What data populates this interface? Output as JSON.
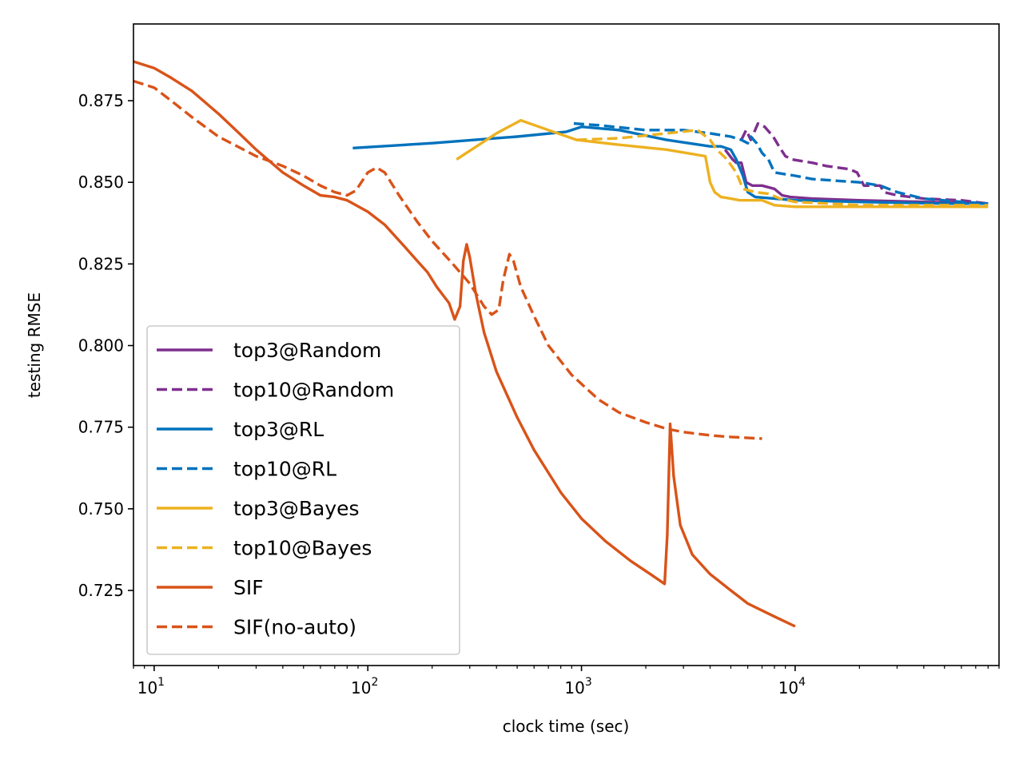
{
  "chart_data": {
    "type": "line",
    "title": "",
    "xlabel": "clock time (sec)",
    "ylabel": "testing RMSE",
    "xscale": "log",
    "xlim": [
      8,
      90000
    ],
    "ylim": [
      0.702,
      0.8985
    ],
    "x_ticks": [
      {
        "value": 10,
        "base": "10",
        "exp": "1"
      },
      {
        "value": 100,
        "base": "10",
        "exp": "2"
      },
      {
        "value": 1000,
        "base": "10",
        "exp": "3"
      },
      {
        "value": 10000,
        "base": "10",
        "exp": "4"
      }
    ],
    "y_ticks": [
      {
        "value": 0.725,
        "label": "0.725"
      },
      {
        "value": 0.75,
        "label": "0.750"
      },
      {
        "value": 0.775,
        "label": "0.775"
      },
      {
        "value": 0.8,
        "label": "0.800"
      },
      {
        "value": 0.825,
        "label": "0.825"
      },
      {
        "value": 0.85,
        "label": "0.850"
      },
      {
        "value": 0.875,
        "label": "0.875"
      }
    ],
    "grid": false,
    "legend_position": "lower-left",
    "series": [
      {
        "name": "top3@Random",
        "color": "#7E2F8E",
        "dash": "solid",
        "x": [
          4700,
          5100,
          5300,
          5600,
          5900,
          6300,
          7000,
          8000,
          8700,
          9500,
          12000,
          20000,
          40000,
          80000
        ],
        "y": [
          0.86,
          0.857,
          0.856,
          0.856,
          0.85,
          0.849,
          0.849,
          0.848,
          0.846,
          0.8455,
          0.845,
          0.8445,
          0.844,
          0.8435
        ]
      },
      {
        "name": "top10@Random",
        "color": "#7E2F8E",
        "dash": "dash",
        "x": [
          5600,
          5900,
          6200,
          6700,
          7200,
          7900,
          8400,
          9000,
          9700,
          12000,
          14000,
          18000,
          19500,
          21000,
          25000,
          26000,
          30000,
          40000,
          60000,
          80000
        ],
        "y": [
          0.863,
          0.866,
          0.863,
          0.868,
          0.867,
          0.864,
          0.861,
          0.858,
          0.857,
          0.856,
          0.855,
          0.854,
          0.853,
          0.849,
          0.849,
          0.847,
          0.846,
          0.845,
          0.8445,
          0.8435
        ]
      },
      {
        "name": "top3@RL",
        "color": "#0072BD",
        "dash": "solid",
        "x": [
          85,
          200,
          500,
          850,
          900,
          1000,
          1500,
          2500,
          4000,
          4500,
          5000,
          5300,
          5700,
          6000,
          6500,
          8000,
          10000,
          20000,
          50000,
          80000
        ],
        "y": [
          0.8605,
          0.862,
          0.864,
          0.8655,
          0.866,
          0.867,
          0.866,
          0.863,
          0.861,
          0.861,
          0.86,
          0.857,
          0.852,
          0.847,
          0.8455,
          0.845,
          0.8445,
          0.844,
          0.8435,
          0.8435
        ]
      },
      {
        "name": "top10@RL",
        "color": "#0072BD",
        "dash": "dash",
        "x": [
          920,
          1200,
          2000,
          3000,
          4000,
          5000,
          5600,
          6000,
          6200,
          6600,
          7000,
          7500,
          8000,
          10000,
          12000,
          20000,
          25000,
          30000,
          40000,
          60000,
          80000
        ],
        "y": [
          0.868,
          0.8675,
          0.866,
          0.866,
          0.865,
          0.864,
          0.863,
          0.862,
          0.864,
          0.862,
          0.859,
          0.857,
          0.853,
          0.852,
          0.851,
          0.85,
          0.849,
          0.847,
          0.845,
          0.844,
          0.8435
        ]
      },
      {
        "name": "top3@Bayes",
        "color": "#EDB120",
        "dash": "solid",
        "x": [
          260,
          400,
          520,
          700,
          950,
          1500,
          2500,
          3800,
          4000,
          4200,
          4500,
          5000,
          5500,
          7000,
          8000,
          10000,
          20000,
          50000,
          80000
        ],
        "y": [
          0.857,
          0.865,
          0.869,
          0.866,
          0.863,
          0.8615,
          0.86,
          0.858,
          0.85,
          0.847,
          0.8455,
          0.845,
          0.8445,
          0.8445,
          0.843,
          0.8425,
          0.8425,
          0.8425,
          0.8425
        ]
      },
      {
        "name": "top10@Bayes",
        "color": "#EDB120",
        "dash": "dash",
        "x": [
          950,
          1500,
          2500,
          3500,
          4000,
          4300,
          4800,
          5300,
          5700,
          6500,
          7500,
          8500,
          10000,
          20000,
          50000,
          80000
        ],
        "y": [
          0.863,
          0.8635,
          0.865,
          0.866,
          0.863,
          0.86,
          0.857,
          0.853,
          0.848,
          0.847,
          0.8465,
          0.845,
          0.844,
          0.843,
          0.843,
          0.843
        ]
      },
      {
        "name": "SIF",
        "color": "#D95319",
        "dash": "solid",
        "x": [
          8,
          10,
          12,
          15,
          20,
          25,
          30,
          40,
          50,
          60,
          70,
          80,
          100,
          120,
          150,
          170,
          190,
          210,
          240,
          255,
          270,
          280,
          290,
          300,
          320,
          350,
          400,
          500,
          600,
          800,
          1000,
          1300,
          1700,
          2100,
          2450,
          2520,
          2600,
          2700,
          2900,
          3300,
          4000,
          5000,
          6000,
          8000,
          10000
        ],
        "y": [
          0.887,
          0.885,
          0.882,
          0.878,
          0.871,
          0.865,
          0.86,
          0.853,
          0.849,
          0.846,
          0.8455,
          0.8445,
          0.841,
          0.837,
          0.83,
          0.826,
          0.8225,
          0.818,
          0.813,
          0.808,
          0.812,
          0.826,
          0.831,
          0.827,
          0.816,
          0.804,
          0.792,
          0.778,
          0.768,
          0.755,
          0.747,
          0.74,
          0.734,
          0.73,
          0.727,
          0.742,
          0.776,
          0.76,
          0.745,
          0.736,
          0.73,
          0.725,
          0.721,
          0.717,
          0.714
        ]
      },
      {
        "name": "SIF(no-auto)",
        "color": "#D95319",
        "dash": "dash",
        "x": [
          8,
          10,
          12,
          15,
          20,
          30,
          40,
          50,
          60,
          70,
          80,
          88,
          100,
          110,
          120,
          140,
          170,
          200,
          250,
          300,
          350,
          380,
          410,
          430,
          460,
          480,
          520,
          600,
          700,
          900,
          1200,
          1500,
          2000,
          2500,
          3000,
          4000,
          5000,
          7000
        ],
        "y": [
          0.881,
          0.879,
          0.875,
          0.87,
          0.864,
          0.858,
          0.855,
          0.852,
          0.849,
          0.847,
          0.846,
          0.8475,
          0.853,
          0.8545,
          0.853,
          0.846,
          0.838,
          0.832,
          0.825,
          0.819,
          0.812,
          0.8095,
          0.811,
          0.82,
          0.828,
          0.826,
          0.818,
          0.809,
          0.8,
          0.791,
          0.7835,
          0.7795,
          0.7765,
          0.7745,
          0.7735,
          0.7725,
          0.772,
          0.7715
        ]
      }
    ]
  }
}
